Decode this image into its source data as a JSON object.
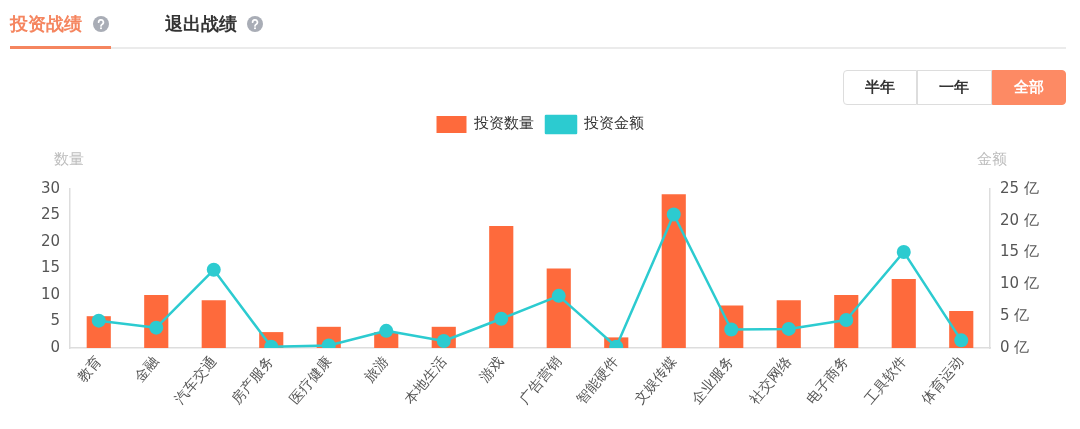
{
  "chart_data": {
    "type": "bar",
    "title": "投资战绩",
    "annotations": [
      "退出战绩",
      "半年",
      "一年",
      "全部"
    ],
    "ylabel": "数量",
    "y2label": "金额",
    "categories": [
      "教育",
      "金融",
      "汽车交通",
      "房产服务",
      "医疗健康",
      "旅游",
      "本地生活",
      "游戏",
      "广告营销",
      "智能硬件",
      "文娱传媒",
      "企业服务",
      "社交网络",
      "电子商务",
      "工具软件",
      "体育运动"
    ],
    "series": [
      {
        "name": "投资数量",
        "color": "#fe6a3c",
        "values": [
          6,
          10,
          9,
          3,
          4,
          3,
          4,
          23,
          15,
          2,
          29,
          8,
          9,
          10,
          13,
          7
        ]
      },
      {
        "name": "投资金额",
        "type": "line",
        "axis": "y2",
        "color": "#2ccbd0",
        "values": [
          4.3,
          3.2,
          12.3,
          0.2,
          0.4,
          2.7,
          1.1,
          4.6,
          8.2,
          0.2,
          21,
          2.9,
          3,
          4.4,
          15.1,
          1.2
        ]
      }
    ],
    "ylim": [
      0,
      30
    ],
    "yticks": [
      0,
      5,
      10,
      15,
      20,
      25,
      30
    ],
    "y2lim": [
      0,
      25
    ],
    "y2ticks": [
      {
        "value": 0,
        "label": "0 亿"
      },
      {
        "value": 5,
        "label": "5 亿"
      },
      {
        "value": 10,
        "label": "10 亿"
      },
      {
        "value": 15,
        "label": "15 亿"
      },
      {
        "value": 20,
        "label": "20 亿"
      },
      {
        "value": 25,
        "label": "25 亿"
      }
    ],
    "grid": false,
    "legend": "top",
    "marker": "circle",
    "line_style": "solid"
  }
}
